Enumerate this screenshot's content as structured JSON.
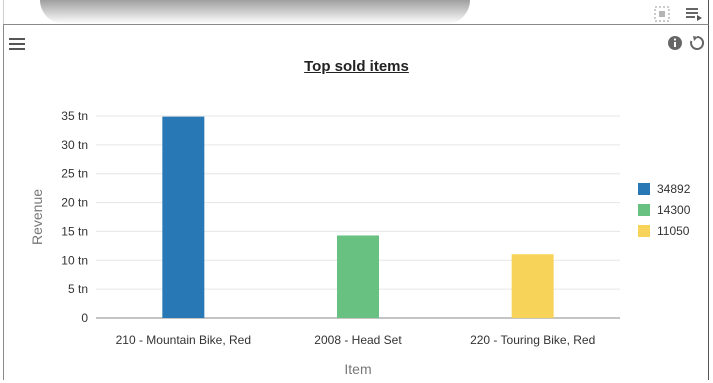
{
  "widget": {
    "toolbar": {
      "icons": [
        "expand-icon",
        "export-icon",
        "menu-icon",
        "info-icon",
        "refresh-icon"
      ]
    }
  },
  "chart_data": {
    "type": "bar",
    "title": "Top sold items",
    "xlabel": "Item",
    "ylabel": "Revenue",
    "categories": [
      "210 - Mountain Bike, Red",
      "2008 - Head Set",
      "220 - Touring Bike, Red"
    ],
    "values": [
      34.892,
      14.3,
      11.05
    ],
    "colors": [
      "#2878b5",
      "#68c180",
      "#f8d35a"
    ],
    "ylim": [
      0,
      35
    ],
    "yticks": [
      0,
      5,
      10,
      15,
      20,
      25,
      30,
      35
    ],
    "ytick_labels": [
      "0",
      "5 tn",
      "10 tn",
      "15 tn",
      "20 tn",
      "25 tn",
      "30 tn",
      "35 tn"
    ],
    "legend": {
      "position": "right",
      "entries": [
        "34892",
        "14300",
        "11050"
      ]
    },
    "grid": true
  }
}
